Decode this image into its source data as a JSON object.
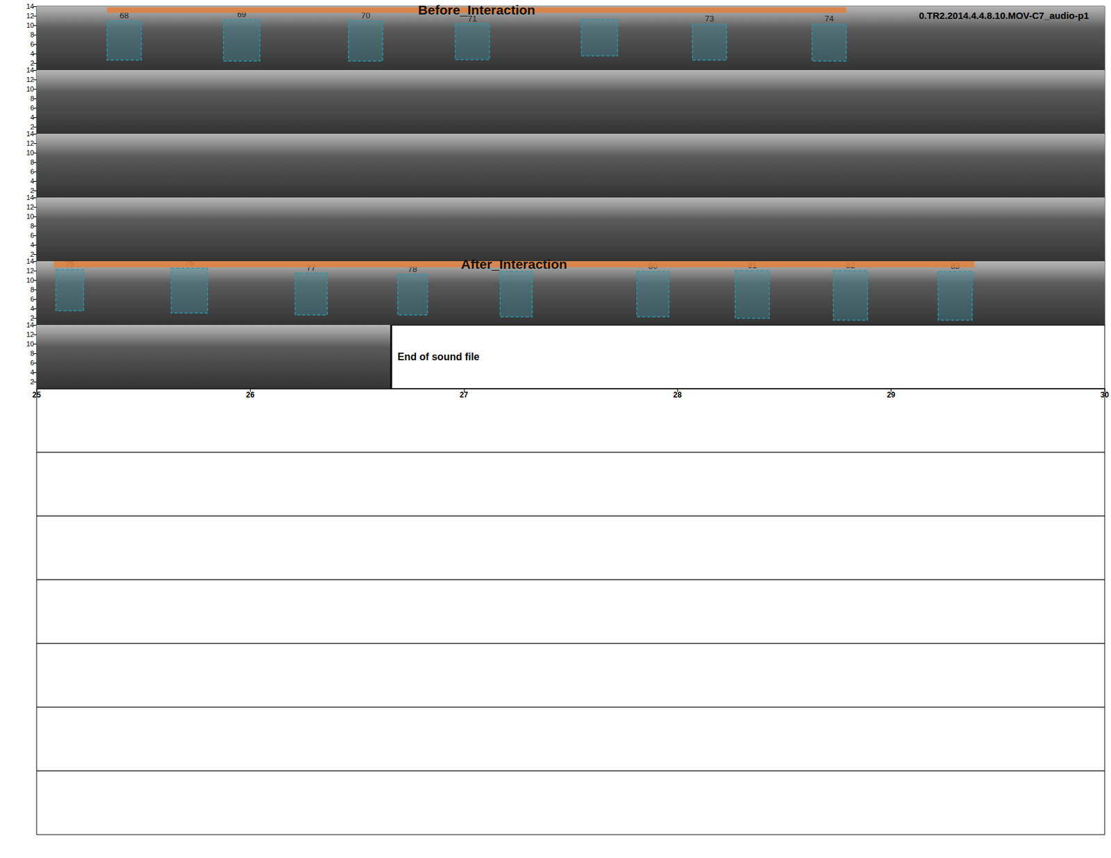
{
  "chart_data": {
    "type": "spectrogram",
    "title": "0.TR2.2014.4.4.8.10.MOV-C7_audio-p1",
    "ylim": [
      0.5,
      14
    ],
    "yticks": [
      2,
      4,
      6,
      8,
      10,
      12,
      14
    ],
    "rows": [
      {
        "xlim": [
          0,
          5
        ]
      },
      {
        "xlim": [
          5,
          10
        ]
      },
      {
        "xlim": [
          10,
          15
        ]
      },
      {
        "xlim": [
          15,
          20
        ]
      },
      {
        "xlim": [
          20,
          25
        ]
      },
      {
        "xlim": [
          25,
          30
        ],
        "xticks": [
          25,
          26,
          27,
          28,
          29,
          30
        ]
      }
    ],
    "empty_rows": 7,
    "end_of_file": {
      "x": 26.66,
      "label": "End of sound file"
    },
    "interactions": [
      {
        "label": "Before_Interaction",
        "x": [
          0.33,
          3.79
        ],
        "y": [
          12.6,
          13.8
        ]
      },
      {
        "label": "After_Interaction",
        "x": [
          20.08,
          24.39
        ],
        "y": [
          12.7,
          14
        ]
      }
    ],
    "selections": [
      {
        "label": "68",
        "x": [
          0.33,
          0.49
        ],
        "y": [
          2.6,
          10.9
        ]
      },
      {
        "label": "69",
        "x": [
          0.875,
          1.045
        ],
        "y": [
          2.4,
          11.2
        ]
      },
      {
        "label": "70",
        "x": [
          1.46,
          1.62
        ],
        "y": [
          2.4,
          10.9
        ]
      },
      {
        "label": "71",
        "x": [
          1.96,
          2.12
        ],
        "y": [
          2.7,
          10.3
        ]
      },
      {
        "label": null,
        "x": [
          2.55,
          2.72
        ],
        "y": [
          3.5,
          11.2
        ]
      },
      {
        "label": "73",
        "x": [
          3.07,
          3.23
        ],
        "y": [
          2.6,
          10.2
        ]
      },
      {
        "label": "74",
        "x": [
          3.63,
          3.79
        ],
        "y": [
          2.4,
          10.2
        ]
      },
      {
        "label": "75",
        "x": [
          20.09,
          20.22
        ],
        "y": [
          3.5,
          12.2
        ]
      },
      {
        "label": "76",
        "x": [
          20.63,
          20.8
        ],
        "y": [
          3.0,
          12.5
        ]
      },
      {
        "label": "77",
        "x": [
          21.21,
          21.36
        ],
        "y": [
          2.6,
          11.5
        ]
      },
      {
        "label": "78",
        "x": [
          21.69,
          21.83
        ],
        "y": [
          2.6,
          11.2
        ]
      },
      {
        "label": null,
        "x": [
          22.17,
          22.32
        ],
        "y": [
          2.2,
          11.8
        ]
      },
      {
        "label": "80",
        "x": [
          22.81,
          22.96
        ],
        "y": [
          2.2,
          11.8
        ]
      },
      {
        "label": "81",
        "x": [
          23.27,
          23.43
        ],
        "y": [
          1.9,
          12.0
        ]
      },
      {
        "label": "82",
        "x": [
          23.73,
          23.89
        ],
        "y": [
          1.5,
          12.0
        ]
      },
      {
        "label": "83",
        "x": [
          24.22,
          24.38
        ],
        "y": [
          1.5,
          11.8
        ]
      }
    ]
  }
}
